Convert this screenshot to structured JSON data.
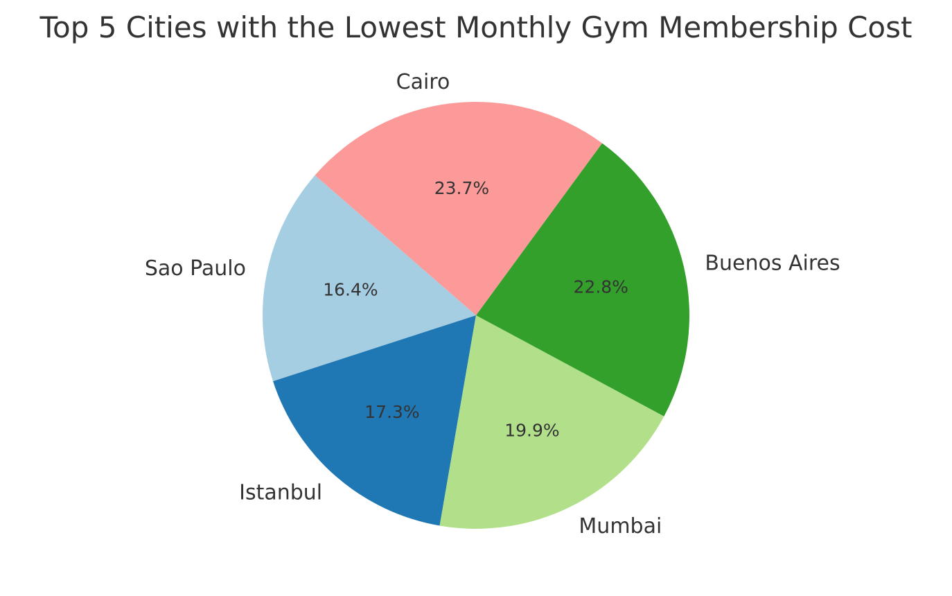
{
  "chart_data": {
    "type": "pie",
    "title": "Top 5 Cities with the Lowest Monthly Gym Membership Cost",
    "start_angle_deg": 139,
    "direction": "counterclockwise",
    "slices": [
      {
        "label": "Sao Paulo",
        "value": 16.4,
        "pct_label": "16.4%",
        "color": "#a6cee3"
      },
      {
        "label": "Istanbul",
        "value": 17.3,
        "pct_label": "17.3%",
        "color": "#1f78b4"
      },
      {
        "label": "Mumbai",
        "value": 19.9,
        "pct_label": "19.9%",
        "color": "#b2df8a"
      },
      {
        "label": "Buenos Aires",
        "value": 22.8,
        "pct_label": "22.8%",
        "color": "#33a02c"
      },
      {
        "label": "Cairo",
        "value": 23.7,
        "pct_label": "23.7%",
        "color": "#fb9a99"
      }
    ]
  }
}
